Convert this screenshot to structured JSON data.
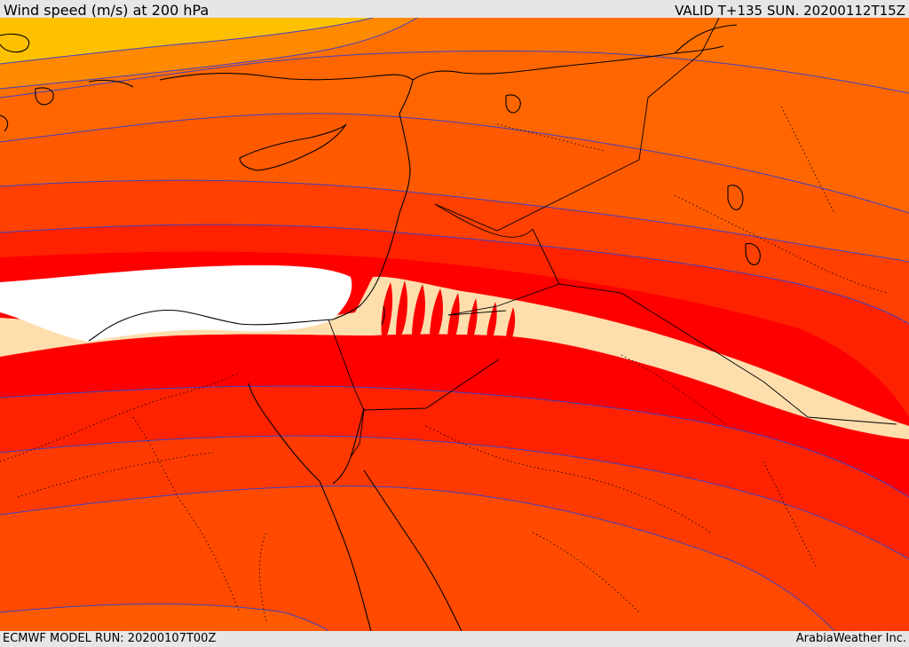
{
  "header": {
    "title": "Wind speed (m/s) at 200 hPa",
    "valid_time": "VALID T+135 SUN. 20200112T15Z"
  },
  "footer": {
    "model_run": "ECMWF MODEL RUN: 20200107T00Z",
    "credit": "ArabiaWeather Inc."
  },
  "map": {
    "projection_region": "Eastern Mediterranean / Levant / Egypt / Arabia",
    "contour_fill_colors": [
      "#ffc000",
      "#ff8000",
      "#ff6600",
      "#ff4a00",
      "#ff2d00",
      "#ff1a00",
      "#ff0000",
      "#ffdead",
      "#ffffff"
    ],
    "contour_line_color": "#4040c0",
    "coastline_color": "#000000",
    "border_style": "dotted"
  }
}
